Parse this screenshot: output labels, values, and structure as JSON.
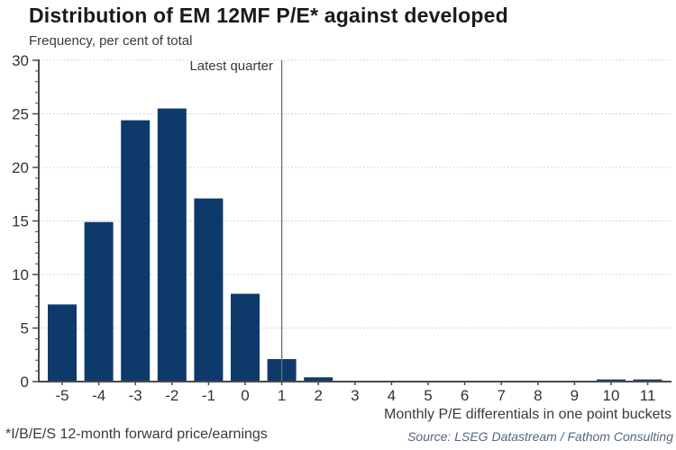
{
  "header": {
    "title": "Distribution of EM 12MF P/E* against developed",
    "subtitle": "Frequency, per cent of total"
  },
  "footer": {
    "footnote": "*I/B/E/S 12-month forward price/earnings",
    "source": "Source: LSEG Datastream / Fathom Consulting"
  },
  "colors": {
    "bar": "#0d3a6b",
    "axis": "#4a4a4a",
    "grid": "#c9c9c9",
    "tick_label": "#333333",
    "annotation_line": "#6e6e6e",
    "title_text": "#1a1a1a",
    "secondary_text": "#3a3a3a",
    "source_text": "#50687d"
  },
  "chart_data": {
    "type": "bar",
    "title": "Distribution of EM 12MF P/E* against developed",
    "subtitle": "Frequency, per cent of total",
    "xlabel": "Monthly P/E differentials in one point buckets",
    "ylabel": "Frequency, per cent of total",
    "categories": [
      "-5",
      "-4",
      "-3",
      "-2",
      "-1",
      "0",
      "1",
      "2",
      "3",
      "4",
      "5",
      "6",
      "7",
      "8",
      "9",
      "10",
      "11"
    ],
    "values": [
      7.2,
      14.9,
      24.4,
      25.5,
      17.1,
      8.2,
      2.1,
      0.4,
      0,
      0,
      0,
      0,
      0,
      0,
      0,
      0.2,
      0.2
    ],
    "ylim": [
      0,
      30
    ],
    "yticks": [
      0,
      5,
      10,
      15,
      20,
      25,
      30
    ],
    "grid": "horizontal-dotted",
    "legend": "none",
    "annotation": {
      "label": "Latest quarter",
      "x": "1"
    }
  }
}
